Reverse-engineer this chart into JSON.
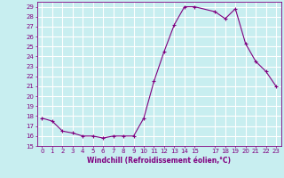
{
  "x": [
    0,
    1,
    2,
    3,
    4,
    5,
    6,
    7,
    8,
    9,
    10,
    11,
    12,
    13,
    14,
    15,
    17,
    18,
    19,
    20,
    21,
    22,
    23
  ],
  "y": [
    17.8,
    17.5,
    16.5,
    16.3,
    16.0,
    16.0,
    15.8,
    16.0,
    16.0,
    16.0,
    17.8,
    21.5,
    24.5,
    27.2,
    29.0,
    29.0,
    28.5,
    27.8,
    28.8,
    25.3,
    23.5,
    22.5,
    21.0
  ],
  "line_color": "#800080",
  "marker": "+",
  "bg_color": "#c8eef0",
  "grid_color": "#ffffff",
  "xlabel": "Windchill (Refroidissement éolien,°C)",
  "ylim": [
    15,
    29.5
  ],
  "xlim": [
    -0.5,
    23.5
  ],
  "yticks": [
    15,
    16,
    17,
    18,
    19,
    20,
    21,
    22,
    23,
    24,
    25,
    26,
    27,
    28,
    29
  ],
  "xticks": [
    0,
    1,
    2,
    3,
    4,
    5,
    6,
    7,
    8,
    9,
    10,
    11,
    12,
    13,
    14,
    15,
    17,
    18,
    19,
    20,
    21,
    22,
    23
  ],
  "axis_color": "#800080",
  "tick_color": "#800080",
  "label_color": "#800080",
  "font_size": 5.0,
  "label_font_size": 5.5,
  "linewidth": 0.8,
  "markersize": 3.0,
  "markeredgewidth": 0.8
}
